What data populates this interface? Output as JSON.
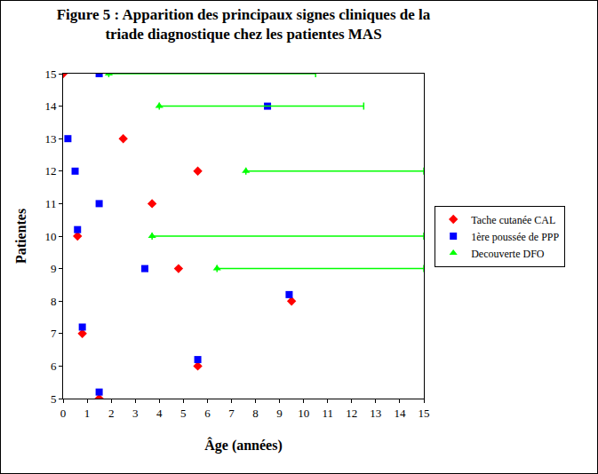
{
  "chart_data": {
    "type": "scatter",
    "title": "Figure 5 : Apparition des principaux signes cliniques de la\ntriade diagnostique chez les patientes MAS",
    "x_label": "Âge (années)",
    "y_label": "Patientes",
    "xlim": [
      0,
      15
    ],
    "xticks": [
      0,
      1,
      2,
      3,
      4,
      5,
      6,
      7,
      8,
      9,
      10,
      11,
      12,
      13,
      14,
      15
    ],
    "ylim": [
      5,
      15
    ],
    "yticks": [
      5,
      6,
      7,
      8,
      9,
      10,
      11,
      12,
      13,
      14,
      15
    ],
    "grid": false,
    "legend": "right",
    "series": [
      {
        "name": "Tache cutanée CAL",
        "color": "#ff0000",
        "marker": "diamond",
        "x": [
          0,
          2.5,
          5.6,
          3.7,
          0.6,
          4.8,
          9.5,
          0.8,
          5.6,
          1.5
        ],
        "values": [
          15,
          13,
          12,
          11,
          10,
          9,
          8,
          7,
          6,
          5
        ]
      },
      {
        "name": "1ère poussée de PPP",
        "color": "#0000ff",
        "marker": "square",
        "x": [
          1.5,
          8.5,
          0.2,
          0.5,
          1.5,
          0.6,
          3.4,
          9.4,
          0.8,
          5.6,
          1.5
        ],
        "values": [
          15,
          14,
          13,
          12,
          11,
          10.2,
          9,
          8.2,
          7.2,
          6.2,
          5.2
        ]
      },
      {
        "name": "Decouverte DFO",
        "color": "#00ff00",
        "marker": "triangle-up",
        "x": [
          1.9,
          4.0,
          7.6,
          3.7,
          6.4
        ],
        "values": [
          15,
          14,
          12,
          10,
          9
        ],
        "error_plus": [
          8.6,
          8.5,
          7.4,
          11.3,
          8.6
        ]
      }
    ]
  }
}
